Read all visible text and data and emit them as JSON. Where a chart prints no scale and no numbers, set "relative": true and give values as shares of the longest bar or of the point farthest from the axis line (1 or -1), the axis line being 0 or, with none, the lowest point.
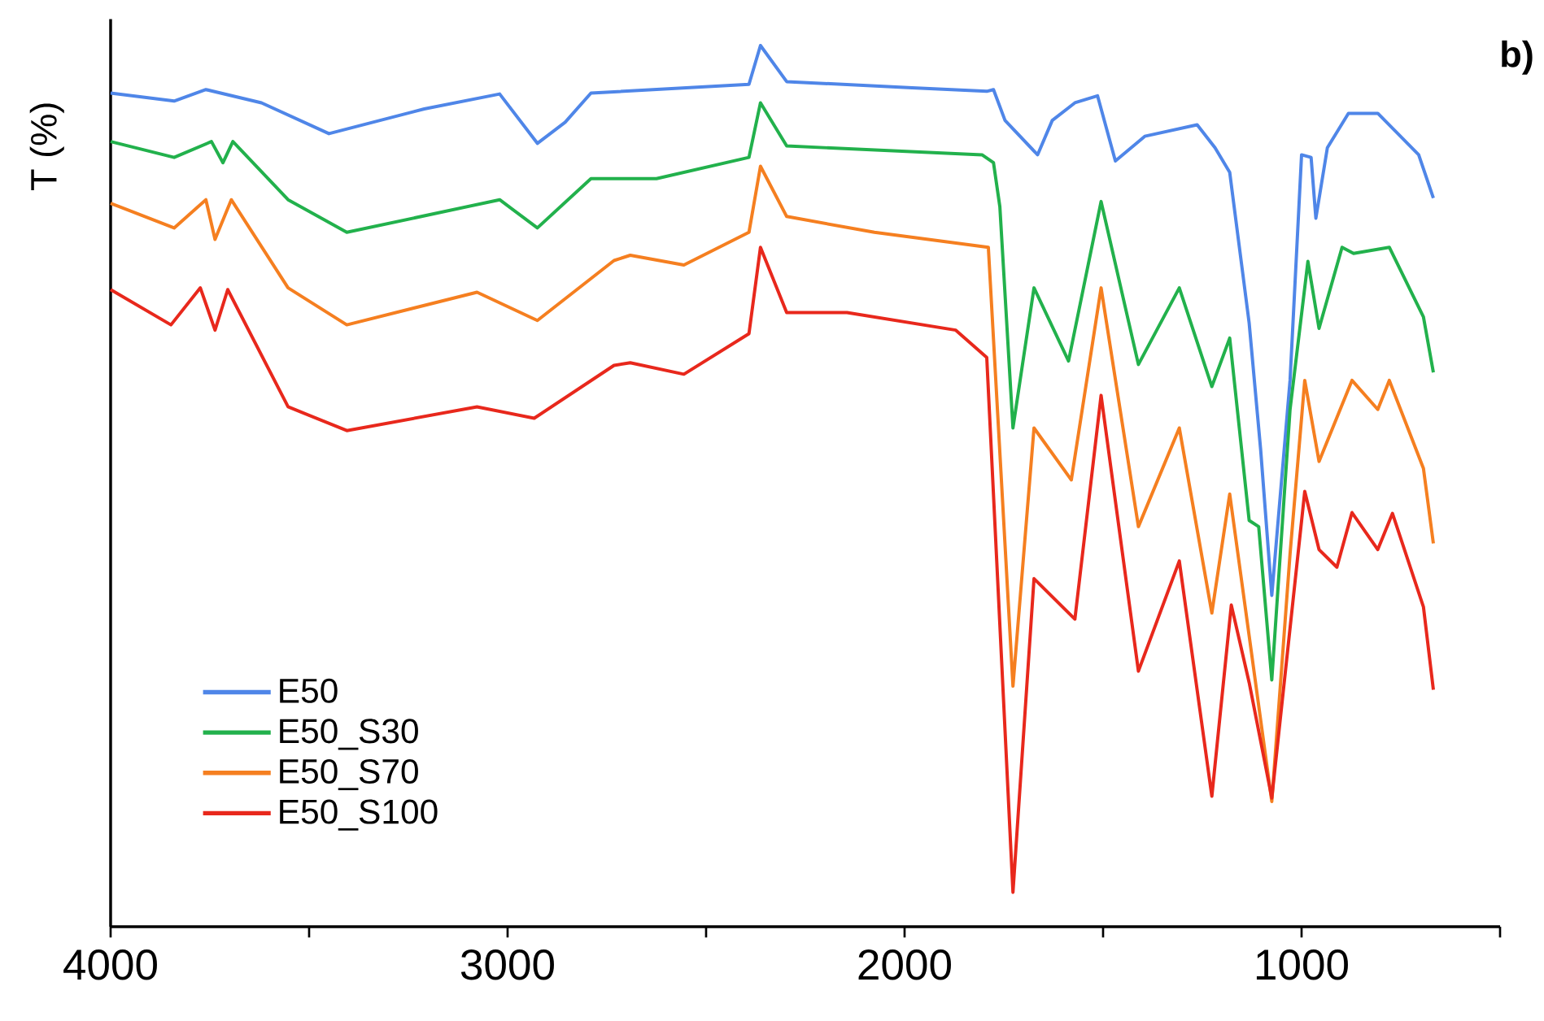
{
  "chart_data": {
    "type": "line",
    "ylabel": "T (%)",
    "annotations": [
      "b)"
    ],
    "relative": true,
    "xlim": [
      4000,
      500
    ],
    "xticks": [
      4000,
      {
        "value": 3500,
        "label": null
      },
      3000,
      {
        "value": 2500,
        "label": null
      },
      2000,
      {
        "value": 1500,
        "label": null
      },
      1000,
      {
        "value": 500,
        "label": null
      }
    ],
    "legend": "bottom left",
    "line_style": "solid",
    "series": [
      {
        "name": "E50",
        "color": "#4f86e8",
        "x": [
          4000,
          3840,
          3760,
          3620,
          3450,
          3210,
          3020,
          2925,
          2855,
          2790,
          2392,
          2363,
          2297,
          1981,
          1793,
          1776,
          1747,
          1665,
          1628,
          1571,
          1514,
          1469,
          1395,
          1263,
          1218,
          1181,
          1132,
          1103,
          1075,
          1029,
          1000,
          976,
          964,
          935,
          882,
          808,
          705,
          668
        ],
        "values": [
          0.946,
          0.937,
          0.95,
          0.935,
          0.9,
          0.928,
          0.945,
          0.889,
          0.913,
          0.946,
          0.956,
          1.0,
          0.959,
          0.952,
          0.948,
          0.95,
          0.915,
          0.876,
          0.915,
          0.935,
          0.943,
          0.869,
          0.897,
          0.91,
          0.884,
          0.856,
          0.685,
          0.541,
          0.376,
          0.62,
          0.876,
          0.873,
          0.804,
          0.884,
          0.923,
          0.923,
          0.876,
          0.827
        ]
      },
      {
        "name": "E50_S30",
        "color": "#22b14c",
        "x": [
          4000,
          3840,
          3746,
          3717,
          3692,
          3553,
          3405,
          3020,
          2925,
          2790,
          2625,
          2392,
          2363,
          2297,
          1805,
          1776,
          1760,
          1727,
          1674,
          1587,
          1505,
          1411,
          1308,
          1226,
          1181,
          1132,
          1108,
          1075,
          1029,
          984,
          956,
          898,
          869,
          779,
          693,
          668
        ],
        "values": [
          0.891,
          0.873,
          0.891,
          0.867,
          0.891,
          0.825,
          0.788,
          0.825,
          0.793,
          0.849,
          0.849,
          0.873,
          0.935,
          0.886,
          0.876,
          0.867,
          0.817,
          0.566,
          0.725,
          0.642,
          0.823,
          0.638,
          0.725,
          0.613,
          0.668,
          0.461,
          0.454,
          0.28,
          0.587,
          0.755,
          0.679,
          0.771,
          0.764,
          0.771,
          0.692,
          0.629
        ]
      },
      {
        "name": "E50_S70",
        "color": "#f57f20",
        "x": [
          4000,
          3840,
          3760,
          3737,
          3696,
          3553,
          3405,
          3077,
          2925,
          2732,
          2691,
          2556,
          2392,
          2363,
          2297,
          2076,
          1789,
          1727,
          1674,
          1580,
          1505,
          1411,
          1308,
          1226,
          1181,
          1132,
          1075,
          1029,
          992,
          956,
          873,
          808,
          779,
          693,
          668
        ],
        "values": [
          0.821,
          0.793,
          0.825,
          0.78,
          0.825,
          0.725,
          0.683,
          0.72,
          0.688,
          0.756,
          0.762,
          0.751,
          0.788,
          0.863,
          0.806,
          0.788,
          0.771,
          0.273,
          0.566,
          0.507,
          0.725,
          0.454,
          0.566,
          0.356,
          0.491,
          0.33,
          0.142,
          0.423,
          0.62,
          0.528,
          0.62,
          0.587,
          0.62,
          0.52,
          0.435
        ]
      },
      {
        "name": "E50_S100",
        "color": "#e8281c",
        "x": [
          4000,
          3848,
          3774,
          3737,
          3705,
          3553,
          3405,
          3077,
          2933,
          2732,
          2691,
          2556,
          2392,
          2363,
          2297,
          2145,
          1871,
          1793,
          1727,
          1674,
          1571,
          1505,
          1411,
          1308,
          1226,
          1177,
          1132,
          1075,
          992,
          956,
          911,
          873,
          808,
          771,
          693,
          668
        ],
        "values": [
          0.723,
          0.683,
          0.725,
          0.677,
          0.723,
          0.59,
          0.563,
          0.59,
          0.577,
          0.637,
          0.64,
          0.627,
          0.673,
          0.771,
          0.697,
          0.697,
          0.677,
          0.646,
          0.039,
          0.395,
          0.349,
          0.603,
          0.29,
          0.415,
          0.148,
          0.365,
          0.277,
          0.146,
          0.494,
          0.428,
          0.408,
          0.47,
          0.428,
          0.469,
          0.363,
          0.269
        ]
      }
    ]
  }
}
